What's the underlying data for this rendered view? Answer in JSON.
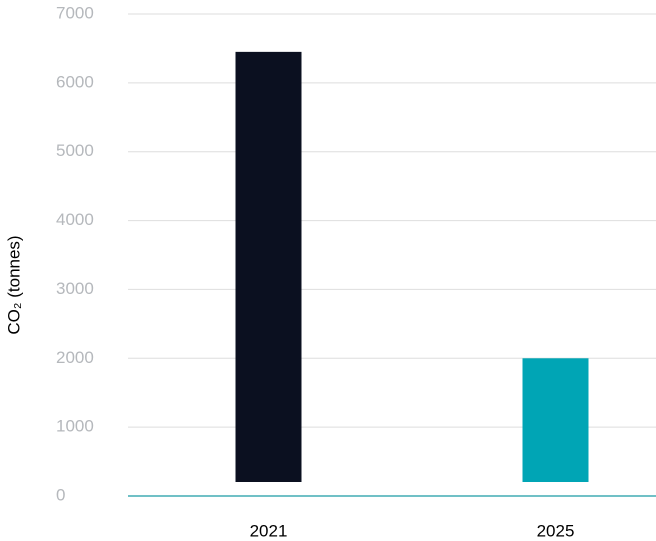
{
  "chart_data": {
    "type": "bar",
    "y_label": "CO₂ (tonnes)",
    "categories": [
      "2021",
      "2025"
    ],
    "values": [
      6450,
      2000
    ],
    "colors": [
      "#0b1020",
      "#00a5b5"
    ],
    "ylim": [
      0,
      7000
    ],
    "yticks": [
      0,
      1000,
      2000,
      3000,
      4000,
      5000,
      6000,
      7000
    ],
    "grid": true
  }
}
